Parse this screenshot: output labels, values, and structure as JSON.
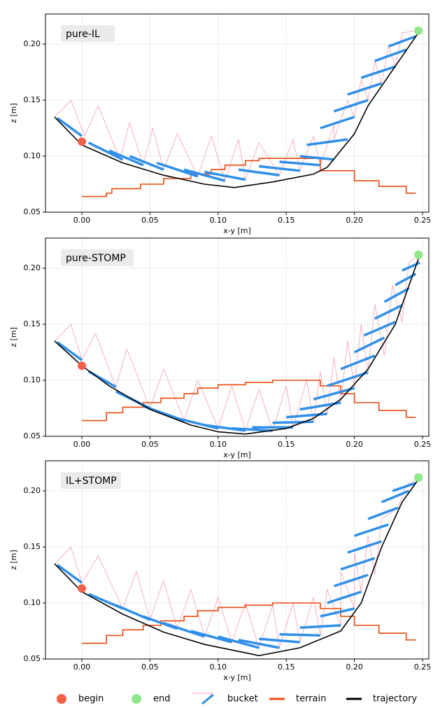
{
  "chart_data": [
    {
      "type": "line",
      "title": "pure-IL",
      "xlabel": "x-y [m]",
      "ylabel": "z [m]",
      "xlim": [
        -0.0267,
        0.2546
      ],
      "ylim": [
        0.05,
        0.2269
      ],
      "grid": true,
      "xticks": [
        {
          "value": 0,
          "label": "0.00"
        },
        {
          "value": 0.05,
          "label": "0.05"
        },
        {
          "value": 0.1,
          "label": "0.10"
        },
        {
          "value": 0.15,
          "label": "0.15"
        },
        {
          "value": 0.2,
          "label": "0.20"
        },
        {
          "value": 0.25,
          "label": "0.25"
        }
      ],
      "yticks": [
        {
          "value": 0.05,
          "label": "0.05"
        },
        {
          "value": 0.1,
          "label": "0.10"
        },
        {
          "value": 0.15,
          "label": "0.15"
        },
        {
          "value": 0.2,
          "label": "0.20"
        }
      ],
      "terrain": {
        "x": [
          0,
          0.018,
          0.018,
          0.022,
          0.022,
          0.043,
          0.043,
          0.06,
          0.06,
          0.08,
          0.08,
          0.095,
          0.095,
          0.105,
          0.105,
          0.12,
          0.12,
          0.13,
          0.13,
          0.175,
          0.175,
          0.2,
          0.2,
          0.218,
          0.218,
          0.238,
          0.238,
          0.245
        ],
        "values": [
          0.064,
          0.064,
          0.067,
          0.067,
          0.071,
          0.071,
          0.075,
          0.075,
          0.08,
          0.08,
          0.084,
          0.084,
          0.088,
          0.088,
          0.092,
          0.092,
          0.096,
          0.096,
          0.098,
          0.098,
          0.087,
          0.087,
          0.078,
          0.078,
          0.073,
          0.073,
          0.067,
          0.067
        ]
      },
      "trajectory": {
        "x": [
          -0.02,
          0,
          0.03,
          0.06,
          0.09,
          0.112,
          0.14,
          0.17,
          0.18,
          0.2,
          0.21,
          0.248
        ],
        "values": [
          0.135,
          0.11,
          0.094,
          0.083,
          0.075,
          0.072,
          0.077,
          0.084,
          0.09,
          0.12,
          0.145,
          0.212
        ]
      },
      "bucket": {
        "x": [
          -0.018,
          0.005,
          0.02,
          0.035,
          0.055,
          0.075,
          0.09,
          0.115,
          0.13,
          0.145,
          0.16,
          0.165,
          0.175,
          0.185,
          0.195,
          0.205,
          0.215,
          0.225
        ],
        "values": [
          0.134,
          0.112,
          0.105,
          0.1,
          0.094,
          0.088,
          0.086,
          0.088,
          0.091,
          0.095,
          0.1,
          0.11,
          0.125,
          0.14,
          0.155,
          0.17,
          0.185,
          0.198
        ],
        "x_end": [
          0,
          0.03,
          0.045,
          0.06,
          0.085,
          0.105,
          0.12,
          0.145,
          0.16,
          0.175,
          0.185,
          0.195,
          0.2,
          0.21,
          0.22,
          0.23,
          0.238,
          0.245
        ],
        "values_end": [
          0.118,
          0.097,
          0.092,
          0.088,
          0.082,
          0.078,
          0.079,
          0.083,
          0.087,
          0.092,
          0.097,
          0.115,
          0.135,
          0.15,
          0.165,
          0.18,
          0.195,
          0.207
        ],
        "outline_x": [
          -0.02,
          -0.008,
          0.002,
          0.012,
          0.028,
          0.035,
          0.045,
          0.052,
          0.06,
          0.07,
          0.085,
          0.095,
          0.105,
          0.115,
          0.12,
          0.13,
          0.145,
          0.155,
          0.16,
          0.17,
          0.175,
          0.185,
          0.185,
          0.195,
          0.2,
          0.205,
          0.21,
          0.215,
          0.22,
          0.225,
          0.23,
          0.235,
          0.245
        ],
        "outline_values": [
          0.135,
          0.15,
          0.118,
          0.145,
          0.097,
          0.13,
          0.092,
          0.125,
          0.088,
          0.12,
          0.082,
          0.118,
          0.078,
          0.115,
          0.079,
          0.112,
          0.083,
          0.115,
          0.087,
          0.118,
          0.092,
          0.128,
          0.115,
          0.15,
          0.135,
          0.168,
          0.15,
          0.185,
          0.165,
          0.198,
          0.18,
          0.21,
          0.212
        ]
      },
      "begin": {
        "x": 0,
        "value": 0.113
      },
      "end": {
        "x": 0.247,
        "value": 0.212
      }
    },
    {
      "type": "line",
      "title": "pure-STOMP",
      "xlabel": "x-y [m]",
      "ylabel": "z [m]",
      "xlim": [
        -0.0267,
        0.2546
      ],
      "ylim": [
        0.05,
        0.2269
      ],
      "grid": true,
      "xticks": [
        {
          "value": 0,
          "label": "0.00"
        },
        {
          "value": 0.05,
          "label": "0.05"
        },
        {
          "value": 0.1,
          "label": "0.10"
        },
        {
          "value": 0.15,
          "label": "0.15"
        },
        {
          "value": 0.2,
          "label": "0.20"
        },
        {
          "value": 0.25,
          "label": "0.25"
        }
      ],
      "yticks": [
        {
          "value": 0.05,
          "label": "0.05"
        },
        {
          "value": 0.1,
          "label": "0.10"
        },
        {
          "value": 0.15,
          "label": "0.15"
        },
        {
          "value": 0.2,
          "label": "0.20"
        }
      ],
      "terrain": {
        "x": [
          0,
          0.018,
          0.018,
          0.03,
          0.03,
          0.045,
          0.045,
          0.058,
          0.058,
          0.075,
          0.075,
          0.085,
          0.085,
          0.1,
          0.1,
          0.12,
          0.12,
          0.14,
          0.14,
          0.175,
          0.175,
          0.19,
          0.19,
          0.2,
          0.2,
          0.218,
          0.218,
          0.238,
          0.238,
          0.245
        ],
        "values": [
          0.064,
          0.064,
          0.071,
          0.071,
          0.076,
          0.076,
          0.08,
          0.08,
          0.084,
          0.084,
          0.088,
          0.088,
          0.093,
          0.093,
          0.096,
          0.096,
          0.098,
          0.098,
          0.1,
          0.1,
          0.095,
          0.095,
          0.088,
          0.088,
          0.08,
          0.08,
          0.073,
          0.073,
          0.067,
          0.067
        ]
      },
      "trajectory": {
        "x": [
          -0.02,
          0,
          0.02,
          0.05,
          0.08,
          0.1,
          0.12,
          0.15,
          0.17,
          0.19,
          0.21,
          0.23,
          0.248
        ],
        "values": [
          0.135,
          0.113,
          0.095,
          0.074,
          0.06,
          0.054,
          0.052,
          0.057,
          0.066,
          0.083,
          0.11,
          0.15,
          0.212
        ]
      },
      "bucket": {
        "x": [
          -0.018,
          0.005,
          0.025,
          0.045,
          0.07,
          0.09,
          0.11,
          0.125,
          0.14,
          0.15,
          0.16,
          0.17,
          0.18,
          0.19,
          0.2,
          0.207,
          0.215,
          0.222,
          0.23,
          0.235
        ],
        "values": [
          0.134,
          0.108,
          0.09,
          0.077,
          0.066,
          0.06,
          0.057,
          0.058,
          0.062,
          0.067,
          0.074,
          0.083,
          0.095,
          0.11,
          0.125,
          0.14,
          0.155,
          0.17,
          0.185,
          0.198
        ],
        "x_end": [
          0,
          0.025,
          0.05,
          0.075,
          0.1,
          0.12,
          0.14,
          0.155,
          0.17,
          0.18,
          0.19,
          0.2,
          0.21,
          0.215,
          0.222,
          0.23,
          0.235,
          0.24,
          0.245,
          0.248
        ],
        "values_end": [
          0.118,
          0.094,
          0.075,
          0.064,
          0.057,
          0.055,
          0.055,
          0.058,
          0.063,
          0.07,
          0.08,
          0.093,
          0.107,
          0.122,
          0.138,
          0.152,
          0.167,
          0.182,
          0.195,
          0.205
        ],
        "outline_x": [
          -0.02,
          -0.008,
          0,
          0.01,
          0.025,
          0.033,
          0.05,
          0.06,
          0.075,
          0.085,
          0.1,
          0.11,
          0.12,
          0.13,
          0.14,
          0.15,
          0.155,
          0.165,
          0.17,
          0.175,
          0.18,
          0.185,
          0.19,
          0.195,
          0.2,
          0.205,
          0.21,
          0.215,
          0.222,
          0.228,
          0.235,
          0.24,
          0.248
        ],
        "outline_values": [
          0.135,
          0.15,
          0.118,
          0.142,
          0.094,
          0.128,
          0.075,
          0.11,
          0.064,
          0.1,
          0.057,
          0.095,
          0.055,
          0.092,
          0.055,
          0.095,
          0.058,
          0.1,
          0.063,
          0.108,
          0.07,
          0.12,
          0.08,
          0.135,
          0.093,
          0.15,
          0.107,
          0.168,
          0.122,
          0.185,
          0.152,
          0.205,
          0.212
        ]
      },
      "begin": {
        "x": 0,
        "value": 0.113
      },
      "end": {
        "x": 0.247,
        "value": 0.212
      }
    },
    {
      "type": "line",
      "title": "IL+STOMP",
      "xlabel": "x-y [m]",
      "ylabel": "z [m]",
      "xlim": [
        -0.0267,
        0.2546
      ],
      "ylim": [
        0.05,
        0.2269
      ],
      "grid": true,
      "xticks": [
        {
          "value": 0,
          "label": "0.00"
        },
        {
          "value": 0.05,
          "label": "0.05"
        },
        {
          "value": 0.1,
          "label": "0.10"
        },
        {
          "value": 0.15,
          "label": "0.15"
        },
        {
          "value": 0.2,
          "label": "0.20"
        },
        {
          "value": 0.25,
          "label": "0.25"
        }
      ],
      "yticks": [
        {
          "value": 0.05,
          "label": "0.05"
        },
        {
          "value": 0.1,
          "label": "0.10"
        },
        {
          "value": 0.15,
          "label": "0.15"
        },
        {
          "value": 0.2,
          "label": "0.20"
        }
      ],
      "terrain": {
        "x": [
          0,
          0.018,
          0.018,
          0.03,
          0.03,
          0.045,
          0.045,
          0.058,
          0.058,
          0.075,
          0.075,
          0.085,
          0.085,
          0.1,
          0.1,
          0.12,
          0.12,
          0.14,
          0.14,
          0.175,
          0.175,
          0.19,
          0.19,
          0.2,
          0.2,
          0.218,
          0.218,
          0.238,
          0.238,
          0.245
        ],
        "values": [
          0.064,
          0.064,
          0.071,
          0.071,
          0.076,
          0.076,
          0.08,
          0.08,
          0.084,
          0.084,
          0.088,
          0.088,
          0.093,
          0.093,
          0.096,
          0.096,
          0.098,
          0.098,
          0.1,
          0.1,
          0.095,
          0.095,
          0.088,
          0.088,
          0.08,
          0.08,
          0.073,
          0.073,
          0.067,
          0.067
        ]
      },
      "trajectory": {
        "x": [
          -0.02,
          0,
          0.03,
          0.06,
          0.09,
          0.13,
          0.16,
          0.19,
          0.205,
          0.22,
          0.235,
          0.248
        ],
        "values": [
          0.135,
          0.11,
          0.09,
          0.074,
          0.063,
          0.053,
          0.06,
          0.075,
          0.1,
          0.15,
          0.19,
          0.212
        ]
      },
      "bucket": {
        "x": [
          -0.018,
          0.005,
          0.025,
          0.045,
          0.06,
          0.08,
          0.1,
          0.115,
          0.13,
          0.145,
          0.16,
          0.175,
          0.18,
          0.185,
          0.19,
          0.195,
          0.2,
          0.21,
          0.22,
          0.228
        ],
        "values": [
          0.134,
          0.108,
          0.098,
          0.088,
          0.082,
          0.075,
          0.07,
          0.067,
          0.068,
          0.072,
          0.078,
          0.088,
          0.1,
          0.115,
          0.13,
          0.145,
          0.16,
          0.175,
          0.19,
          0.2
        ],
        "x_end": [
          0,
          0.03,
          0.05,
          0.07,
          0.09,
          0.11,
          0.13,
          0.145,
          0.16,
          0.175,
          0.19,
          0.2,
          0.205,
          0.21,
          0.215,
          0.22,
          0.225,
          0.232,
          0.24,
          0.245
        ],
        "values_end": [
          0.118,
          0.095,
          0.085,
          0.077,
          0.07,
          0.065,
          0.06,
          0.06,
          0.065,
          0.071,
          0.08,
          0.095,
          0.11,
          0.125,
          0.14,
          0.155,
          0.17,
          0.185,
          0.2,
          0.207
        ],
        "outline_x": [
          -0.02,
          -0.008,
          0,
          0.012,
          0.03,
          0.04,
          0.05,
          0.06,
          0.07,
          0.08,
          0.09,
          0.1,
          0.11,
          0.12,
          0.13,
          0.14,
          0.145,
          0.155,
          0.16,
          0.17,
          0.175,
          0.18,
          0.19,
          0.19,
          0.2,
          0.2,
          0.205,
          0.21,
          0.215,
          0.22,
          0.232,
          0.238,
          0.248
        ],
        "outline_values": [
          0.135,
          0.15,
          0.118,
          0.142,
          0.095,
          0.128,
          0.085,
          0.12,
          0.077,
          0.112,
          0.07,
          0.105,
          0.065,
          0.1,
          0.06,
          0.098,
          0.06,
          0.1,
          0.065,
          0.105,
          0.071,
          0.112,
          0.08,
          0.128,
          0.095,
          0.145,
          0.11,
          0.16,
          0.125,
          0.175,
          0.185,
          0.205,
          0.212
        ]
      },
      "begin": {
        "x": 0,
        "value": 0.113
      },
      "end": {
        "x": 0.247,
        "value": 0.212
      }
    }
  ],
  "legend": [
    {
      "name": "begin",
      "color": "#f4604a"
    },
    {
      "name": "end",
      "color": "#8fe88a"
    },
    {
      "name": "bucket",
      "color": "#2f8fe8",
      "outline_color": "#f7a8b8"
    },
    {
      "name": "terrain",
      "color": "#ea4a10"
    },
    {
      "name": "trajectory",
      "color": "#000000"
    }
  ]
}
